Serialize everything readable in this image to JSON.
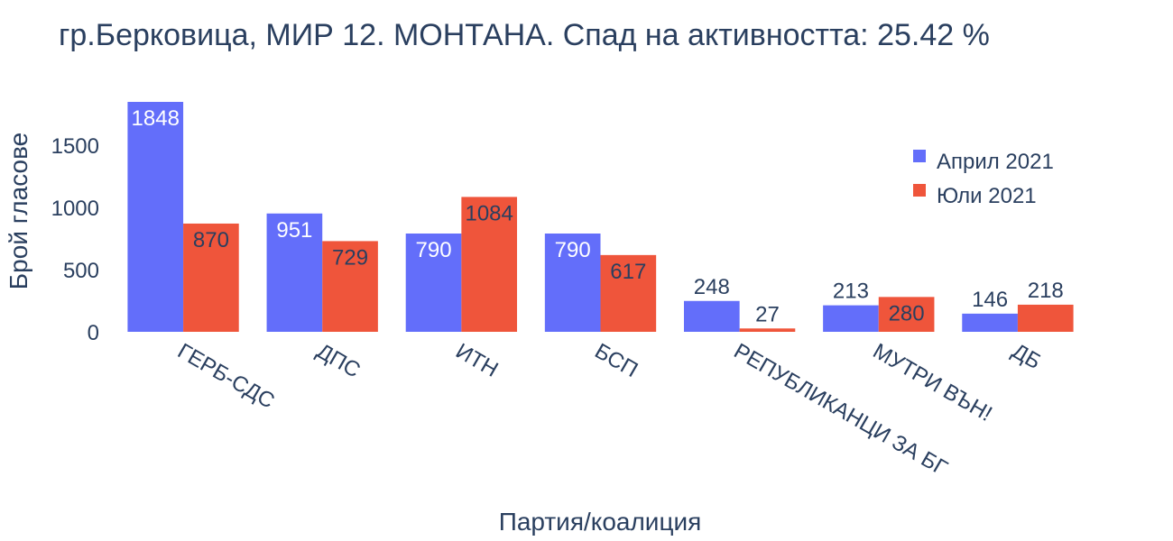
{
  "chart_data": {
    "type": "bar",
    "title": "гр.Берковица, МИР 12. МОНТАНА. Спад на активността: 25.42 %",
    "xlabel": "Партия/коалиция",
    "ylabel": "Брой гласове",
    "categories": [
      "ГЕРБ-СДС",
      "ДПС",
      "ИТН",
      "БСП",
      "РЕПУБЛИКАНЦИ ЗА БГ",
      "МУТРИ ВЪН!",
      "ДБ"
    ],
    "series": [
      {
        "name": "Април 2021",
        "color": "#636efa",
        "values": [
          1848,
          951,
          790,
          790,
          248,
          213,
          146
        ]
      },
      {
        "name": "Юли 2021",
        "color": "#ef553b",
        "values": [
          870,
          729,
          1084,
          617,
          27,
          280,
          218
        ]
      }
    ],
    "yticks": [
      0,
      500,
      1000,
      1500
    ],
    "ylim": [
      0,
      1848
    ],
    "legend_position": "top-right",
    "grid": false
  }
}
